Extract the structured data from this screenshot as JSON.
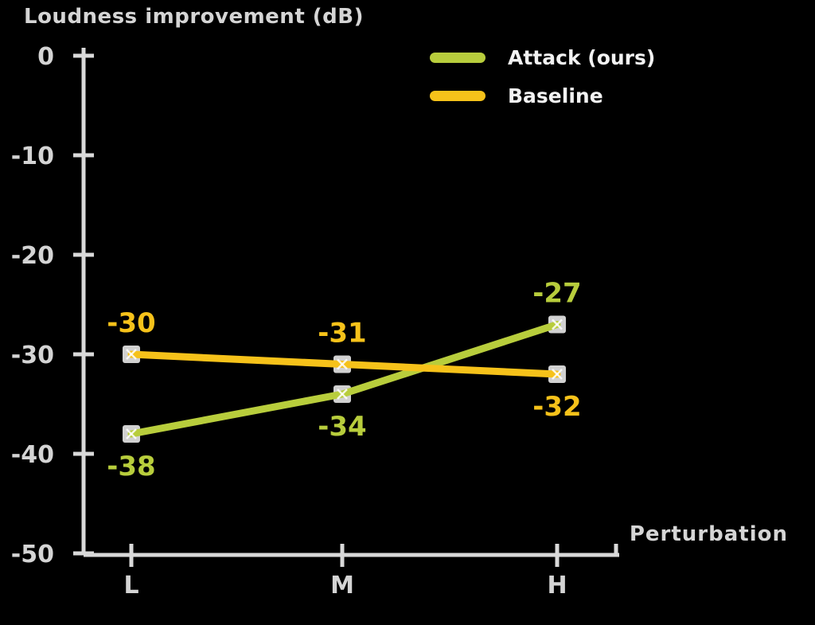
{
  "chart_data": {
    "type": "line",
    "title": "Loudness improvement (dB)",
    "xlabel": "Perturbation",
    "ylabel": "",
    "categories": [
      "L",
      "M",
      "H"
    ],
    "y_ticks": [
      0,
      -10,
      -20,
      -30,
      -40,
      -50
    ],
    "y_tick_labels": [
      "0",
      "-10",
      "-20",
      "-30",
      "-40",
      "-50"
    ],
    "ylim": [
      -50,
      0
    ],
    "grid": false,
    "legend_position": "upper-center",
    "background_color": "#000000",
    "axis_color": "#d9d9d9",
    "tick_label_color": "#d4d4d4",
    "title_color": "#d5d5d5",
    "legend_text_color": "#f2f2f2",
    "marker": {
      "shape": "square",
      "color": "#dcdcdc",
      "cross_color": "#ffffff"
    },
    "series": [
      {
        "name": "Attack (ours)",
        "color": "#b8cd3c",
        "values": [
          -38,
          -34,
          -27
        ],
        "point_labels": [
          "-38",
          "-34",
          "-27"
        ],
        "label_sides": [
          "below",
          "below",
          "above"
        ]
      },
      {
        "name": "Baseline",
        "color": "#f6c21a",
        "values": [
          -30,
          -31,
          -32
        ],
        "point_labels": [
          "-30",
          "-31",
          "-32"
        ],
        "label_sides": [
          "above",
          "above",
          "below"
        ]
      }
    ]
  }
}
